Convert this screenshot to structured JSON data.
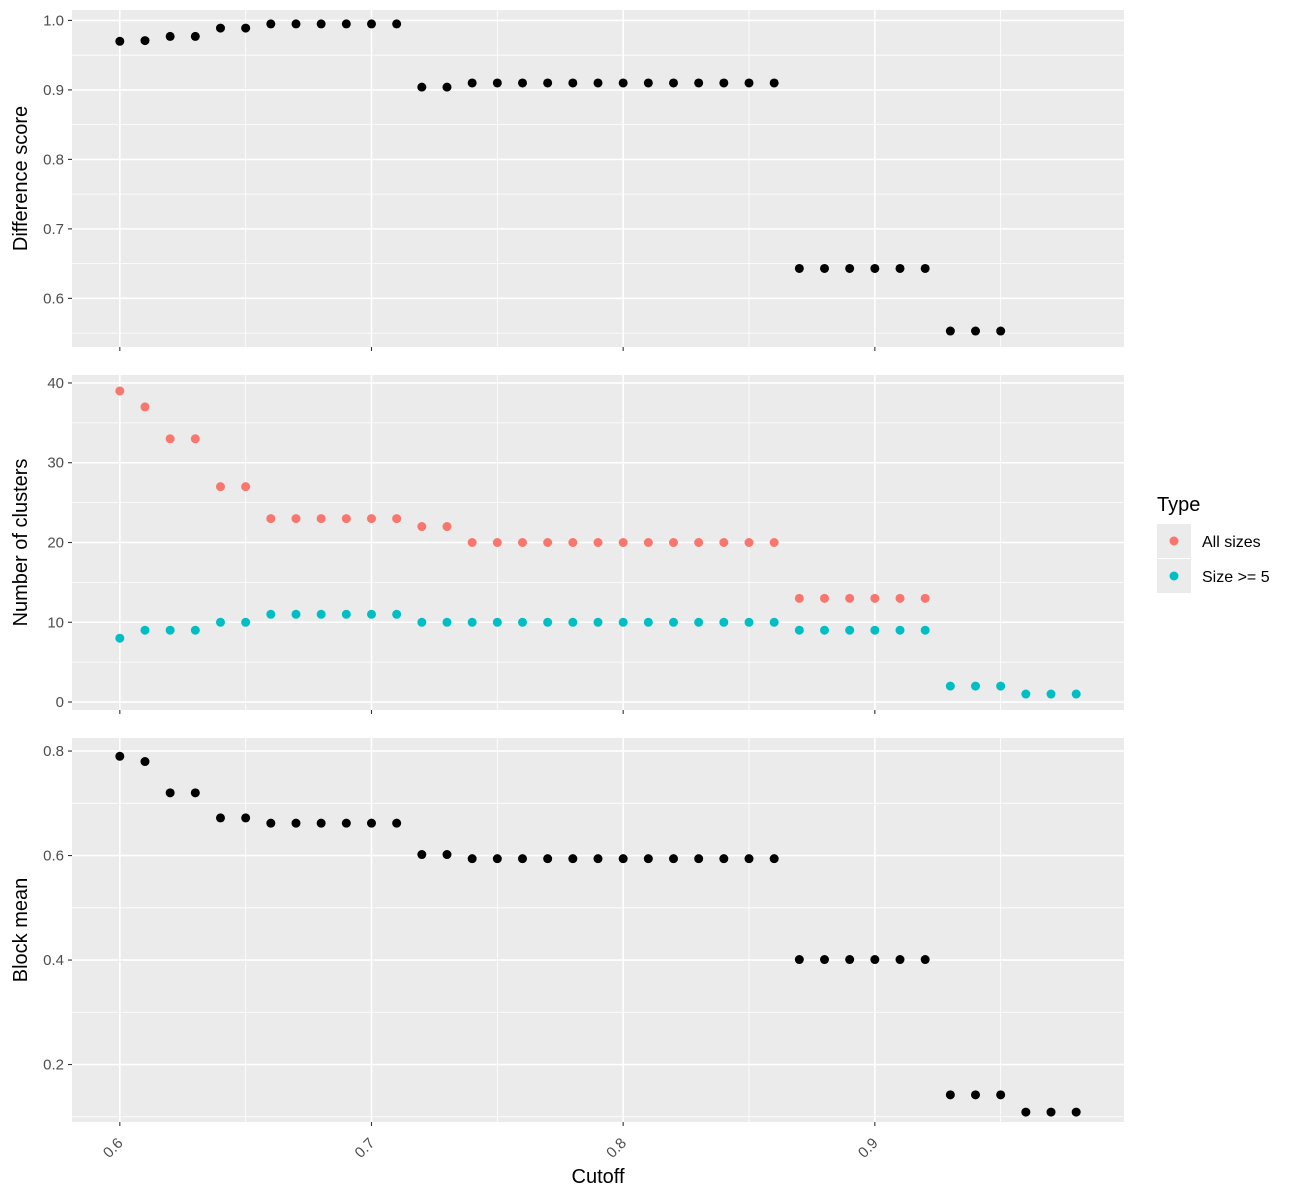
{
  "chart_data": {
    "type": "scatter",
    "xlabel": "Cutoff",
    "x_ticks": [
      "0.6",
      "0.7",
      "0.8",
      "0.9"
    ],
    "xlim": [
      0.581,
      0.999
    ],
    "colors": {
      "panel_bg": "#ebebeb",
      "grid": "#ffffff",
      "point_black": "#000000",
      "all_sizes": "#f8766d",
      "size_ge_5": "#00bfc4"
    },
    "legend": {
      "position": "right",
      "title": "Type",
      "entries": [
        "All sizes",
        "Size >= 5"
      ]
    },
    "panels": [
      {
        "ylabel": "Difference score",
        "ylim": [
          0.53,
          1.015
        ],
        "y_ticks": [
          "0.6",
          "0.7",
          "0.8",
          "0.9",
          "1.0"
        ],
        "series": [
          {
            "x": [
              0.6,
              0.61,
              0.62,
              0.63,
              0.64,
              0.65,
              0.66,
              0.67,
              0.68,
              0.69,
              0.7,
              0.71,
              0.72,
              0.73,
              0.74,
              0.75,
              0.76,
              0.77,
              0.78,
              0.79,
              0.8,
              0.81,
              0.82,
              0.83,
              0.84,
              0.85,
              0.86,
              0.87,
              0.88,
              0.89,
              0.9,
              0.91,
              0.92,
              0.93,
              0.94,
              0.95
            ],
            "y": [
              0.97,
              0.971,
              0.977,
              0.977,
              0.989,
              0.989,
              0.995,
              0.995,
              0.995,
              0.995,
              0.995,
              0.995,
              0.904,
              0.904,
              0.91,
              0.91,
              0.91,
              0.91,
              0.91,
              0.91,
              0.91,
              0.91,
              0.91,
              0.91,
              0.91,
              0.91,
              0.91,
              0.643,
              0.643,
              0.643,
              0.643,
              0.643,
              0.643,
              0.553,
              0.553,
              0.553
            ]
          }
        ]
      },
      {
        "ylabel": "Number of clusters",
        "ylim": [
          -1,
          41
        ],
        "y_ticks": [
          "0",
          "10",
          "20",
          "30",
          "40"
        ],
        "series": [
          {
            "name": "All sizes",
            "x": [
              0.6,
              0.61,
              0.62,
              0.63,
              0.64,
              0.65,
              0.66,
              0.67,
              0.68,
              0.69,
              0.7,
              0.71,
              0.72,
              0.73,
              0.74,
              0.75,
              0.76,
              0.77,
              0.78,
              0.79,
              0.8,
              0.81,
              0.82,
              0.83,
              0.84,
              0.85,
              0.86,
              0.87,
              0.88,
              0.89,
              0.9,
              0.91,
              0.92
            ],
            "y": [
              39,
              37,
              33,
              33,
              27,
              27,
              23,
              23,
              23,
              23,
              23,
              23,
              22,
              22,
              20,
              20,
              20,
              20,
              20,
              20,
              20,
              20,
              20,
              20,
              20,
              20,
              20,
              13,
              13,
              13,
              13,
              13,
              13
            ]
          },
          {
            "name": "Size >= 5",
            "x": [
              0.6,
              0.61,
              0.62,
              0.63,
              0.64,
              0.65,
              0.66,
              0.67,
              0.68,
              0.69,
              0.7,
              0.71,
              0.72,
              0.73,
              0.74,
              0.75,
              0.76,
              0.77,
              0.78,
              0.79,
              0.8,
              0.81,
              0.82,
              0.83,
              0.84,
              0.85,
              0.86,
              0.87,
              0.88,
              0.89,
              0.9,
              0.91,
              0.92,
              0.93,
              0.94,
              0.95,
              0.96,
              0.97,
              0.98
            ],
            "y": [
              8,
              9,
              9,
              9,
              10,
              10,
              11,
              11,
              11,
              11,
              11,
              11,
              10,
              10,
              10,
              10,
              10,
              10,
              10,
              10,
              10,
              10,
              10,
              10,
              10,
              10,
              10,
              9,
              9,
              9,
              9,
              9,
              9,
              2,
              2,
              2,
              1,
              1,
              1
            ]
          }
        ]
      },
      {
        "ylabel": "Block mean",
        "ylim": [
          0.09,
          0.825
        ],
        "y_ticks": [
          "0.2",
          "0.4",
          "0.6",
          "0.8"
        ],
        "series": [
          {
            "x": [
              0.6,
              0.61,
              0.62,
              0.63,
              0.64,
              0.65,
              0.66,
              0.67,
              0.68,
              0.69,
              0.7,
              0.71,
              0.72,
              0.73,
              0.74,
              0.75,
              0.76,
              0.77,
              0.78,
              0.79,
              0.8,
              0.81,
              0.82,
              0.83,
              0.84,
              0.85,
              0.86,
              0.87,
              0.88,
              0.89,
              0.9,
              0.91,
              0.92,
              0.93,
              0.94,
              0.95,
              0.96,
              0.97,
              0.98
            ],
            "y": [
              0.79,
              0.78,
              0.72,
              0.72,
              0.672,
              0.672,
              0.662,
              0.662,
              0.662,
              0.662,
              0.662,
              0.662,
              0.602,
              0.602,
              0.594,
              0.594,
              0.594,
              0.594,
              0.594,
              0.594,
              0.594,
              0.594,
              0.594,
              0.594,
              0.594,
              0.594,
              0.594,
              0.401,
              0.401,
              0.401,
              0.401,
              0.401,
              0.401,
              0.142,
              0.142,
              0.142,
              0.109,
              0.109,
              0.109
            ]
          }
        ]
      }
    ]
  }
}
